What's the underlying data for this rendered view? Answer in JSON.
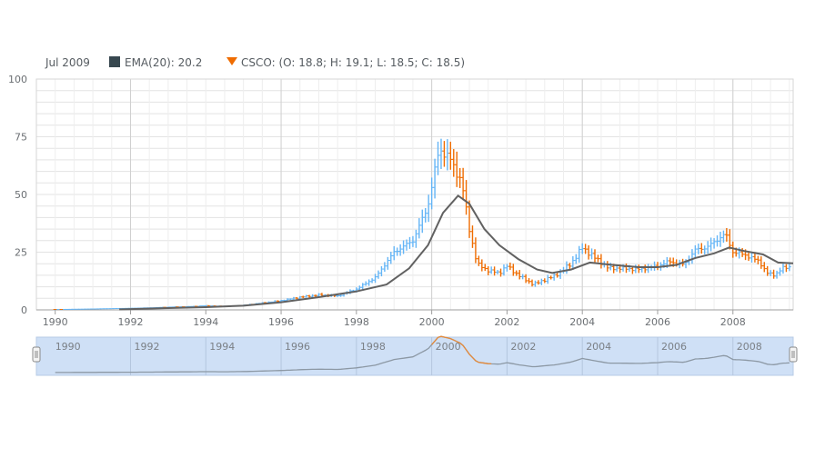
{
  "legend": {
    "date": "Jul 2009",
    "ema_label": "EMA(20): 20.2",
    "ohlc_label": "CSCO: (O: 18.8; H: 19.1; L: 18.5; C: 18.5)",
    "ema_color": "#37474f",
    "ohlc_marker_color": "#ef6c00",
    "ohlc_marker_icon": "triangle-down-icon"
  },
  "colors": {
    "up": "#64b5f6",
    "down": "#ef6c00",
    "ema": "#616161",
    "grid": "#e3e3e3",
    "major_grid": "#cfcfcf",
    "navigator_fill": "#cfe0f6"
  },
  "chart_data": {
    "type": "ohlc",
    "title": "",
    "xlabel": "",
    "ylabel": "",
    "ylim": [
      0,
      100
    ],
    "y_ticks": [
      "0",
      "25",
      "50",
      "75",
      "100"
    ],
    "x_ticks": [
      "1990",
      "1992",
      "1994",
      "1996",
      "1998",
      "2000",
      "2002",
      "2004",
      "2006",
      "2008"
    ],
    "xlim": [
      1989.5,
      2009.6
    ],
    "grid": true,
    "series": [
      {
        "name": "CSCO",
        "type": "ohlc",
        "close_points": [
          [
            1990.2,
            0.2
          ],
          [
            1991.0,
            0.4
          ],
          [
            1992.0,
            0.7
          ],
          [
            1992.5,
            0.9
          ],
          [
            1993.0,
            1.2
          ],
          [
            1993.5,
            1.4
          ],
          [
            1994.0,
            1.8
          ],
          [
            1994.5,
            1.5
          ],
          [
            1995.0,
            2.0
          ],
          [
            1995.5,
            3.0
          ],
          [
            1996.0,
            4.0
          ],
          [
            1996.5,
            5.5
          ],
          [
            1997.0,
            6.5
          ],
          [
            1997.5,
            6.0
          ],
          [
            1998.0,
            9.0
          ],
          [
            1998.5,
            14.0
          ],
          [
            1999.0,
            25.0
          ],
          [
            1999.5,
            30.0
          ],
          [
            1999.9,
            45.0
          ],
          [
            2000.2,
            70.0
          ],
          [
            2000.5,
            65.0
          ],
          [
            2000.8,
            55.0
          ],
          [
            2001.0,
            35.0
          ],
          [
            2001.2,
            20.0
          ],
          [
            2001.5,
            17.0
          ],
          [
            2001.8,
            16.0
          ],
          [
            2002.0,
            19.0
          ],
          [
            2002.3,
            15.0
          ],
          [
            2002.7,
            11.0
          ],
          [
            2003.0,
            13.0
          ],
          [
            2003.3,
            15.0
          ],
          [
            2003.7,
            20.0
          ],
          [
            2004.0,
            27.0
          ],
          [
            2004.3,
            23.0
          ],
          [
            2004.7,
            18.0
          ],
          [
            2005.0,
            18.0
          ],
          [
            2005.5,
            17.5
          ],
          [
            2006.0,
            19.0
          ],
          [
            2006.3,
            21.0
          ],
          [
            2006.7,
            19.5
          ],
          [
            2007.0,
            26.0
          ],
          [
            2007.3,
            27.0
          ],
          [
            2007.8,
            33.0
          ],
          [
            2008.0,
            25.0
          ],
          [
            2008.3,
            24.0
          ],
          [
            2008.7,
            21.0
          ],
          [
            2008.9,
            16.0
          ],
          [
            2009.1,
            15.0
          ],
          [
            2009.3,
            18.0
          ],
          [
            2009.5,
            18.5
          ]
        ]
      },
      {
        "name": "EMA(20)",
        "type": "line",
        "points": [
          [
            1991.7,
            0.2
          ],
          [
            1993.0,
            0.8
          ],
          [
            1994.0,
            1.2
          ],
          [
            1995.0,
            1.8
          ],
          [
            1996.0,
            3.3
          ],
          [
            1997.0,
            5.5
          ],
          [
            1998.0,
            8.0
          ],
          [
            1998.8,
            11.0
          ],
          [
            1999.4,
            18.0
          ],
          [
            1999.9,
            28.0
          ],
          [
            2000.3,
            42.0
          ],
          [
            2000.7,
            49.5
          ],
          [
            2001.0,
            46.0
          ],
          [
            2001.4,
            35.0
          ],
          [
            2001.8,
            28.0
          ],
          [
            2002.3,
            22.0
          ],
          [
            2002.8,
            17.5
          ],
          [
            2003.2,
            16.0
          ],
          [
            2003.7,
            17.5
          ],
          [
            2004.2,
            20.5
          ],
          [
            2004.8,
            19.5
          ],
          [
            2005.5,
            18.5
          ],
          [
            2006.0,
            18.5
          ],
          [
            2006.5,
            19.5
          ],
          [
            2007.0,
            22.5
          ],
          [
            2007.5,
            24.5
          ],
          [
            2007.9,
            27.0
          ],
          [
            2008.3,
            25.5
          ],
          [
            2008.8,
            24.0
          ],
          [
            2009.2,
            20.5
          ],
          [
            2009.6,
            20.2
          ]
        ]
      }
    ]
  },
  "navigator": {
    "x_ticks": [
      "1990",
      "1992",
      "1994",
      "1996",
      "1998",
      "2000",
      "2002",
      "2004",
      "2006",
      "2008"
    ],
    "left_handle_icon": "drag-handle-icon",
    "right_handle_icon": "drag-handle-icon"
  }
}
